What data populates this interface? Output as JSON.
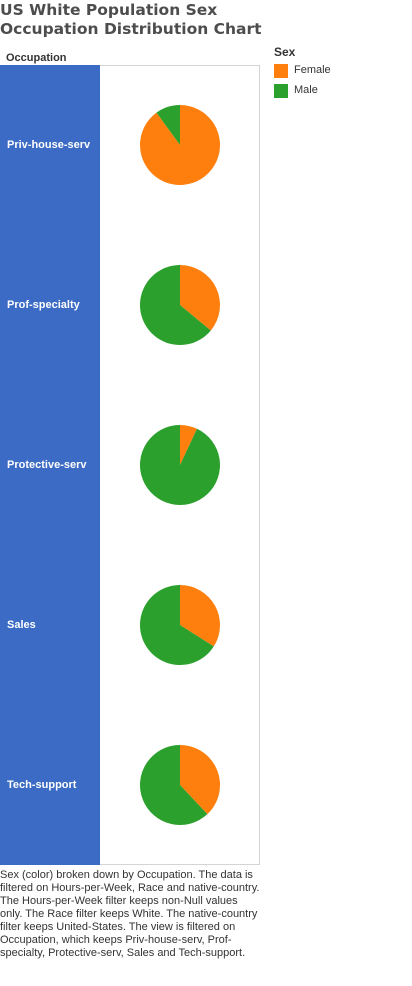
{
  "title": "US White Population Sex Occupation Distribution Chart",
  "legend": {
    "title": "Sex",
    "items": [
      {
        "label": "Female",
        "color": "#ff7f0e"
      },
      {
        "label": "Male",
        "color": "#2ca02c"
      }
    ]
  },
  "colors": {
    "row_band": "#3b6bc4",
    "Female": "#ff7f0e",
    "Male": "#2ca02c"
  },
  "chart_data": {
    "type": "pie",
    "row_header": "Occupation",
    "series_field": "Sex",
    "series_names": [
      "Female",
      "Male"
    ],
    "rows": [
      {
        "category": "Priv-house-serv",
        "values": {
          "Female": 0.9,
          "Male": 0.1
        }
      },
      {
        "category": "Prof-specialty",
        "values": {
          "Female": 0.36,
          "Male": 0.64
        }
      },
      {
        "category": "Protective-serv",
        "values": {
          "Female": 0.07,
          "Male": 0.93
        }
      },
      {
        "category": "Sales",
        "values": {
          "Female": 0.34,
          "Male": 0.66
        }
      },
      {
        "category": "Tech-support",
        "values": {
          "Female": 0.38,
          "Male": 0.62
        }
      }
    ]
  },
  "caption": "Sex (color) broken down by Occupation.  The data is filtered on Hours-per-Week, Race and native-country. The Hours-per-Week filter keeps non-Null values only. The Race filter keeps White. The native-country filter keeps United-States. The view is filtered on Occupation, which keeps Priv-house-serv, Prof-specialty, Protective-serv, Sales and Tech-support."
}
